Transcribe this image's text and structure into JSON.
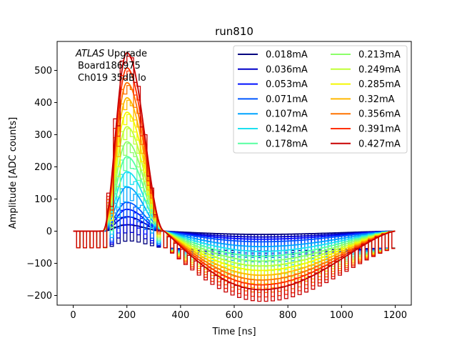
{
  "chart_data": {
    "type": "line",
    "title": "run810",
    "xlabel": "Time [ns]",
    "ylabel": "Amplitude [ADC counts]",
    "xlim": [
      -60,
      1260
    ],
    "ylim": [
      -230,
      590
    ],
    "xticks": [
      0,
      200,
      400,
      600,
      800,
      1000,
      1200
    ],
    "yticks": [
      -200,
      -100,
      0,
      100,
      200,
      300,
      400,
      500
    ],
    "xtick_labels": [
      "0",
      "200",
      "400",
      "600",
      "800",
      "1000",
      "1200"
    ],
    "ytick_labels": [
      "−200",
      "−100",
      "0",
      "100",
      "200",
      "300",
      "400",
      "500"
    ],
    "grid": false,
    "legend": {
      "placement": "top-right",
      "columns": 2
    },
    "annotation": {
      "italic": "ATLAS",
      "rest": " Upgrade",
      "line2": "Board186975",
      "line3": "Ch019 35dB lo"
    },
    "pulse_model": {
      "baseline_end_ns": 110,
      "peak_ns": 200,
      "zero_cross_ns": 340,
      "undershoot_min_ns": 700,
      "end_ns": 1200,
      "undershoot_ratio": 0.34,
      "sample_period_ns": 25,
      "digital_offset_high": 0,
      "digital_offset_low": -52
    },
    "series": [
      {
        "name": "0.018mA",
        "current_mA": 0.018,
        "peak": 20,
        "undershoot": -10,
        "color": "#00007f"
      },
      {
        "name": "0.036mA",
        "current_mA": 0.036,
        "peak": 45,
        "undershoot": -18,
        "color": "#0000c8"
      },
      {
        "name": "0.053mA",
        "current_mA": 0.053,
        "peak": 68,
        "undershoot": -25,
        "color": "#0010ff"
      },
      {
        "name": "0.071mA",
        "current_mA": 0.071,
        "peak": 90,
        "undershoot": -33,
        "color": "#0058ff"
      },
      {
        "name": "0.107mA",
        "current_mA": 0.107,
        "peak": 138,
        "undershoot": -48,
        "color": "#00a4ff"
      },
      {
        "name": "0.142mA",
        "current_mA": 0.142,
        "peak": 185,
        "undershoot": -63,
        "color": "#1ce0f0"
      },
      {
        "name": "0.178mA",
        "current_mA": 0.178,
        "peak": 232,
        "undershoot": -78,
        "color": "#56ffa0"
      },
      {
        "name": "0.213mA",
        "current_mA": 0.213,
        "peak": 278,
        "undershoot": -93,
        "color": "#8cff6a"
      },
      {
        "name": "0.249mA",
        "current_mA": 0.249,
        "peak": 325,
        "undershoot": -108,
        "color": "#c0ff36"
      },
      {
        "name": "0.285mA",
        "current_mA": 0.285,
        "peak": 370,
        "undershoot": -122,
        "color": "#f4f802"
      },
      {
        "name": "0.32mA",
        "current_mA": 0.32,
        "peak": 415,
        "undershoot": -137,
        "color": "#ffb900"
      },
      {
        "name": "0.356mA",
        "current_mA": 0.356,
        "peak": 462,
        "undershoot": -152,
        "color": "#ff7300"
      },
      {
        "name": "0.391mA",
        "current_mA": 0.391,
        "peak": 508,
        "undershoot": -167,
        "color": "#ff3000"
      },
      {
        "name": "0.427mA",
        "current_mA": 0.427,
        "peak": 555,
        "undershoot": -182,
        "color": "#c80000"
      }
    ]
  }
}
